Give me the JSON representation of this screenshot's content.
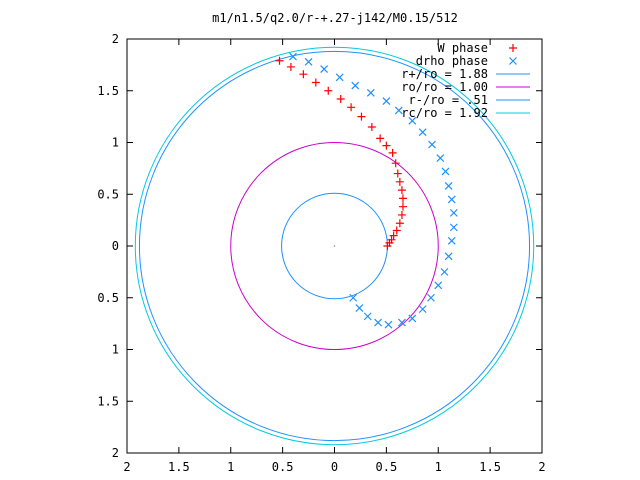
{
  "chart_data": {
    "type": "scatter",
    "title": "m1/n1.5/q2.0/r-+.27-j142/M0.15/512",
    "xlim": [
      -2,
      2
    ],
    "ylim": [
      -2,
      2
    ],
    "x_ticks": [
      -2,
      -1.5,
      -1,
      -0.5,
      0,
      0.5,
      1,
      1.5,
      2
    ],
    "y_ticks": [
      2,
      1.5,
      1,
      0.5,
      0,
      -0.5,
      -1,
      -1.5,
      -2
    ],
    "x_tick_labels": [
      "2",
      "1.5",
      "1",
      "0.5",
      "0",
      "0.5",
      "1",
      "1.5",
      "2"
    ],
    "y_tick_labels": [
      "2",
      "1.5",
      "1",
      "0.5",
      "0",
      "0.5",
      "1",
      "1.5",
      "2"
    ],
    "grid": false,
    "legend_position": "top-right",
    "series": [
      {
        "name": "W phase",
        "marker": "+",
        "color": "#ff0000",
        "points": [
          [
            0.51,
            0.0
          ],
          [
            0.53,
            0.03
          ],
          [
            0.55,
            0.06
          ],
          [
            0.57,
            0.1
          ],
          [
            0.6,
            0.15
          ],
          [
            0.63,
            0.22
          ],
          [
            0.65,
            0.3
          ],
          [
            0.66,
            0.38
          ],
          [
            0.66,
            0.46
          ],
          [
            0.65,
            0.54
          ],
          [
            0.63,
            0.62
          ],
          [
            0.61,
            0.7
          ],
          [
            0.59,
            0.8
          ],
          [
            0.56,
            0.9
          ],
          [
            0.5,
            0.97
          ],
          [
            0.44,
            1.04
          ],
          [
            0.36,
            1.15
          ],
          [
            0.26,
            1.25
          ],
          [
            0.16,
            1.34
          ],
          [
            0.06,
            1.42
          ],
          [
            -0.06,
            1.5
          ],
          [
            -0.18,
            1.58
          ],
          [
            -0.3,
            1.66
          ],
          [
            -0.42,
            1.73
          ],
          [
            -0.53,
            1.79
          ]
        ]
      },
      {
        "name": "drho phase",
        "marker": "x",
        "color": "#1e90ff",
        "points": [
          [
            -0.4,
            1.83
          ],
          [
            -0.25,
            1.78
          ],
          [
            -0.1,
            1.71
          ],
          [
            0.05,
            1.63
          ],
          [
            0.2,
            1.55
          ],
          [
            0.35,
            1.48
          ],
          [
            0.5,
            1.4
          ],
          [
            0.62,
            1.31
          ],
          [
            0.75,
            1.21
          ],
          [
            0.85,
            1.1
          ],
          [
            0.94,
            0.98
          ],
          [
            1.02,
            0.85
          ],
          [
            1.07,
            0.72
          ],
          [
            1.1,
            0.58
          ],
          [
            1.13,
            0.45
          ],
          [
            1.15,
            0.32
          ],
          [
            1.15,
            0.18
          ],
          [
            1.13,
            0.05
          ],
          [
            1.1,
            -0.1
          ],
          [
            1.06,
            -0.25
          ],
          [
            1.0,
            -0.38
          ],
          [
            0.93,
            -0.5
          ],
          [
            0.85,
            -0.61
          ],
          [
            0.75,
            -0.7
          ],
          [
            0.65,
            -0.74
          ],
          [
            0.52,
            -0.76
          ],
          [
            0.42,
            -0.74
          ],
          [
            0.32,
            -0.68
          ],
          [
            0.24,
            -0.6
          ],
          [
            0.18,
            -0.5
          ]
        ]
      }
    ],
    "circles": [
      {
        "name": "r+/ro = 1.88",
        "radius": 1.88,
        "color": "#1e90ff"
      },
      {
        "name": "ro/ro = 1.00",
        "radius": 1.0,
        "color": "#cc00cc"
      },
      {
        "name": "r-/ro = .51",
        "radius": 0.51,
        "color": "#1e90ff"
      },
      {
        "name": "rc/ro = 1.92",
        "radius": 1.92,
        "color": "#00ccdd"
      }
    ]
  }
}
